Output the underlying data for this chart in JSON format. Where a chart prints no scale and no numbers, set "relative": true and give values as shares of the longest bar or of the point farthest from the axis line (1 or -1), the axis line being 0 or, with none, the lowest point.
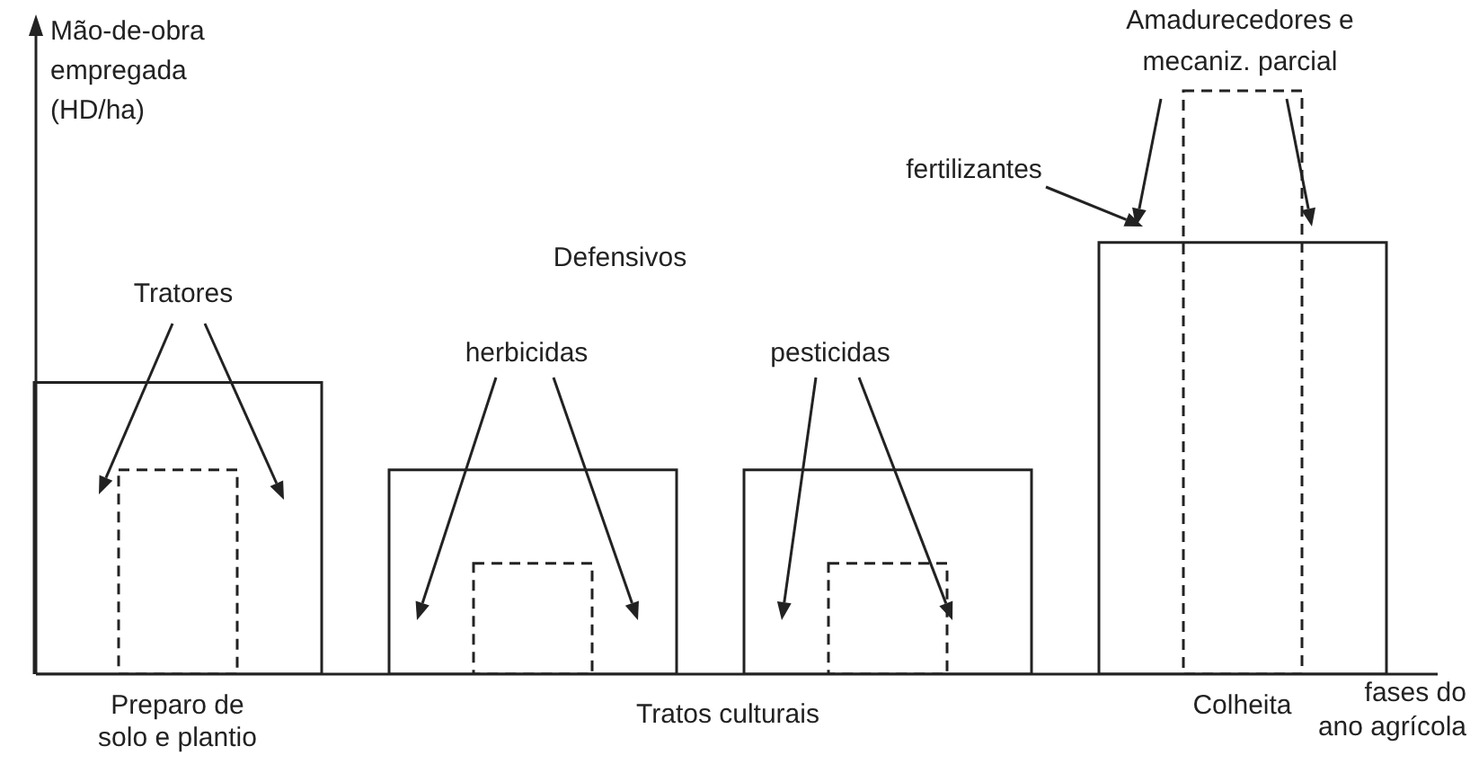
{
  "chart_data": {
    "type": "bar",
    "relative": true,
    "xlabel": "fases do ano agrícola",
    "ylabel": "Mão-de-obra empregada (HD/ha)",
    "categories": [
      "Preparo de solo e plantio",
      null,
      null,
      "Colheita"
    ],
    "series": [
      {
        "color": "#222222",
        "line_style": "solid",
        "values": [
          0.5,
          0.35,
          0.35,
          0.74
        ]
      },
      {
        "color": "#222222",
        "line_style": "dashed",
        "values": [
          0.35,
          0.19,
          0.19,
          1
        ]
      }
    ],
    "annotations": [
      "Tratores",
      "Defensivos",
      "herbicidas",
      "pesticidas",
      "fertilizantes",
      "Amadurecedores e mecaniz. parcial",
      "Tratos culturais"
    ],
    "grid": false,
    "legend": false
  }
}
